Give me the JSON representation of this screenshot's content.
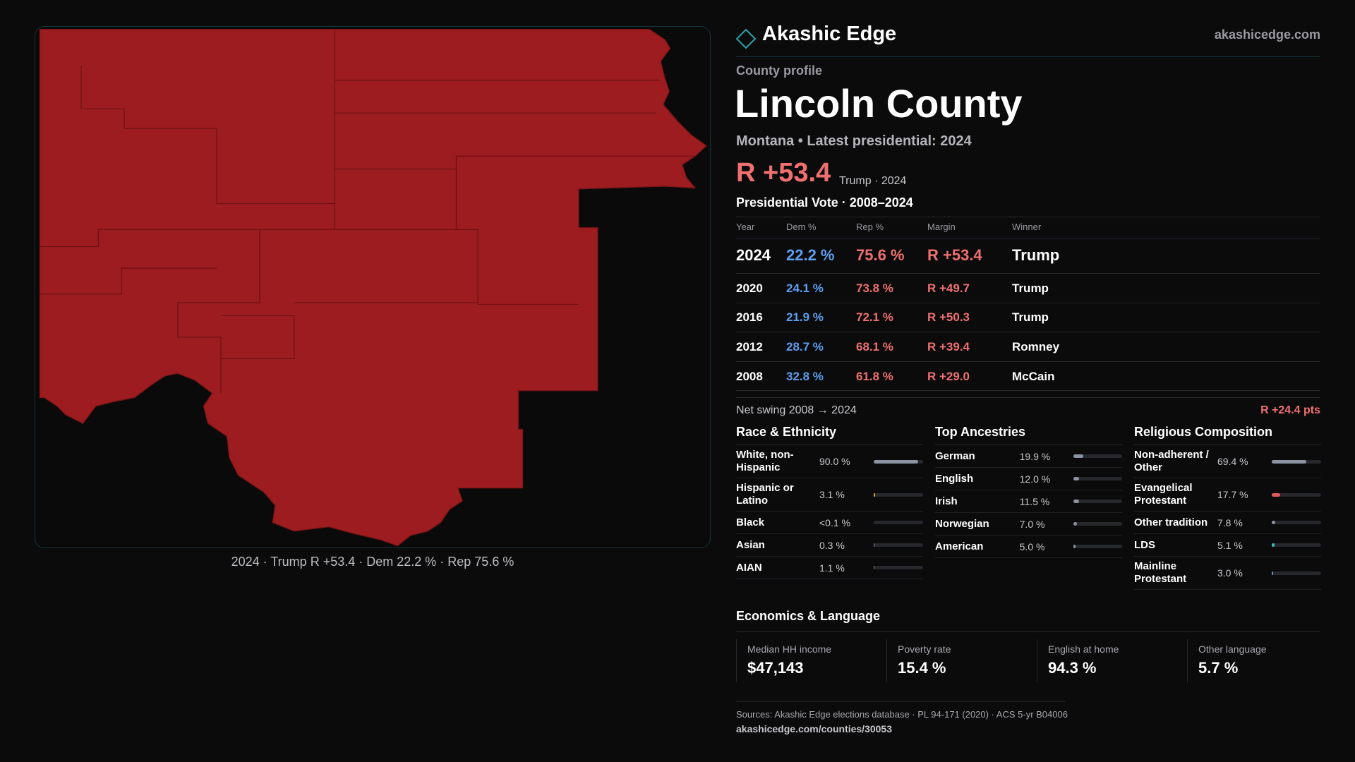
{
  "header": {
    "brand": "Akashic Edge",
    "site": "akashicedge.com"
  },
  "profile": {
    "kicker": "County profile",
    "name": "Lincoln County",
    "subtitle": "Montana • Latest presidential: 2024",
    "headline_margin": "R +53.4",
    "headline_note": "Trump · 2024"
  },
  "map": {
    "caption": "2024 · Trump R +53.4 · Dem 22.2 % · Rep 75.6 %"
  },
  "vote_table": {
    "title": "Presidential Vote · 2008–2024",
    "columns": [
      "Year",
      "Dem %",
      "Rep %",
      "Margin",
      "Winner"
    ],
    "rows": [
      [
        "2024",
        "22.2 %",
        "75.6 %",
        "R +53.4",
        "Trump"
      ],
      [
        "2020",
        "24.1 %",
        "73.8 %",
        "R +49.7",
        "Trump"
      ],
      [
        "2016",
        "21.9 %",
        "72.1 %",
        "R +50.3",
        "Trump"
      ],
      [
        "2012",
        "28.7 %",
        "68.1 %",
        "R +39.4",
        "Romney"
      ],
      [
        "2008",
        "32.8 %",
        "61.8 %",
        "R +29.0",
        "McCain"
      ]
    ]
  },
  "swing": {
    "label": "Net swing 2008 → 2024",
    "value": "R +24.4 pts"
  },
  "demographics": [
    {
      "title": "Race & Ethnicity",
      "items": [
        {
          "label": "White, non-Hispanic",
          "value": 90.0,
          "value_label": "90.0 %",
          "color": "#8d93a3"
        },
        {
          "label": "Hispanic or Latino",
          "value": 3.1,
          "value_label": "3.1 %",
          "color": "#d9a441"
        },
        {
          "label": "Black",
          "value": 0,
          "value_label": "<0.1 %",
          "color": "#8d93a3"
        },
        {
          "label": "Asian",
          "value": 0.3,
          "value_label": "0.3 %",
          "color": "#8d93a3"
        },
        {
          "label": "AIAN",
          "value": 1.1,
          "value_label": "1.1 %",
          "color": "#c27a52"
        }
      ]
    },
    {
      "title": "Top Ancestries",
      "items": [
        {
          "label": "German",
          "value": 19.9,
          "value_label": "19.9 %",
          "color": "#8d93a3"
        },
        {
          "label": "English",
          "value": 12.0,
          "value_label": "12.0 %",
          "color": "#8d93a3"
        },
        {
          "label": "Irish",
          "value": 11.5,
          "value_label": "11.5 %",
          "color": "#8d93a3"
        },
        {
          "label": "Norwegian",
          "value": 7.0,
          "value_label": "7.0 %",
          "color": "#8d93a3"
        },
        {
          "label": "American",
          "value": 5.0,
          "value_label": "5.0 %",
          "color": "#8d93a3"
        }
      ]
    },
    {
      "title": "Religious Composition",
      "items": [
        {
          "label": "Non-adherent / Other",
          "value": 69.4,
          "value_label": "69.4 %",
          "color": "#8d93a3"
        },
        {
          "label": "Evangelical Protestant",
          "value": 17.7,
          "value_label": "17.7 %",
          "color": "#e05a5a"
        },
        {
          "label": "Other tradition",
          "value": 7.8,
          "value_label": "7.8 %",
          "color": "#8d93a3"
        },
        {
          "label": "LDS",
          "value": 5.1,
          "value_label": "5.1 %",
          "color": "#3fb8c0"
        },
        {
          "label": "Mainline Protestant",
          "value": 3.0,
          "value_label": "3.0 %",
          "color": "#6a8fd0"
        }
      ]
    }
  ],
  "economics": {
    "title": "Economics & Language",
    "stats": [
      {
        "label": "Median HH income",
        "value": "$47,143"
      },
      {
        "label": "Poverty rate",
        "value": "15.4 %"
      },
      {
        "label": "English at home",
        "value": "94.3 %"
      },
      {
        "label": "Other language",
        "value": "5.7 %"
      }
    ]
  },
  "footer": {
    "sources": "Sources: Akashic Edge elections database · PL 94-171 (2020) · ACS 5-yr B04006",
    "url": "akashicedge.com/counties/30053"
  }
}
